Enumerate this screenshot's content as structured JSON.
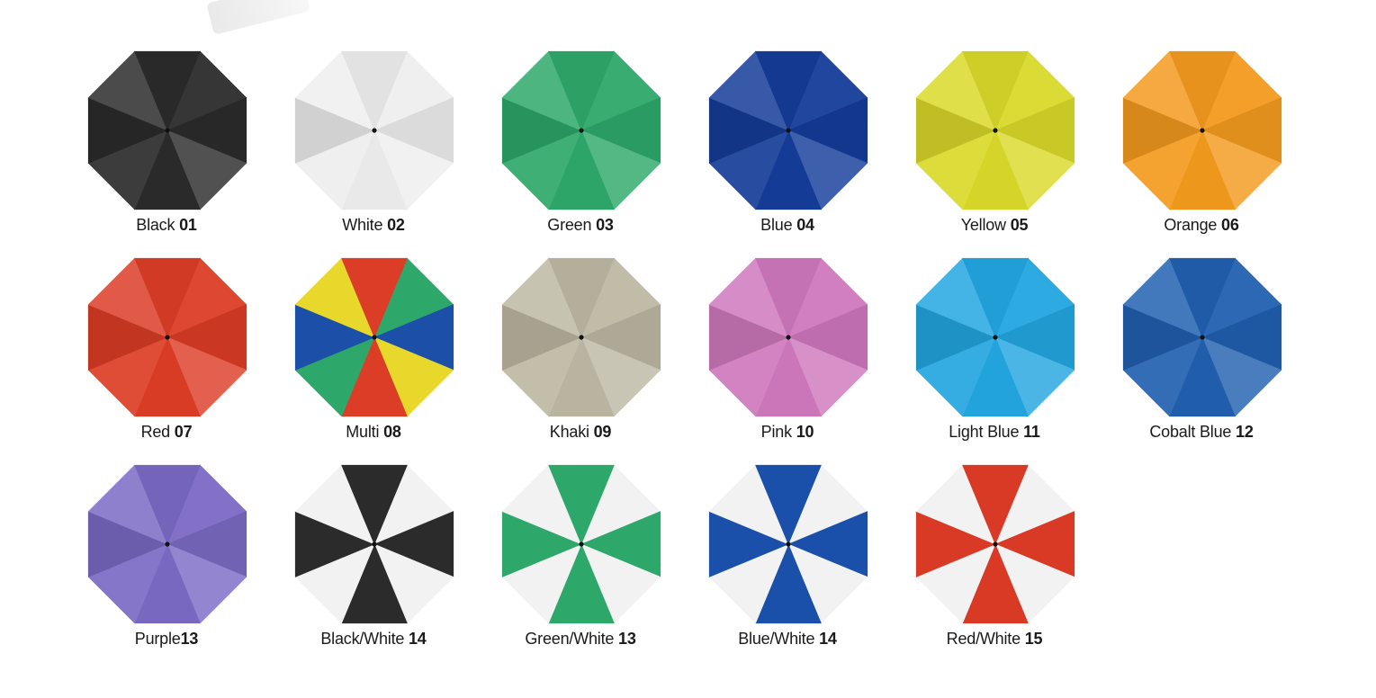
{
  "swatches": [
    {
      "name": "Black",
      "code": "01",
      "colors": [
        "#2b2b2b"
      ]
    },
    {
      "name": "White",
      "code": "02",
      "colors": [
        "#eeeeee"
      ]
    },
    {
      "name": "Green",
      "code": "03",
      "colors": [
        "#2ea86a"
      ]
    },
    {
      "name": "Blue",
      "code": "04",
      "colors": [
        "#143c98"
      ]
    },
    {
      "name": "Yellow",
      "code": "05",
      "colors": [
        "#d9d92a"
      ]
    },
    {
      "name": "Orange",
      "code": "06",
      "colors": [
        "#f39a1e"
      ]
    },
    {
      "name": "Red",
      "code": "07",
      "colors": [
        "#dc3d26"
      ]
    },
    {
      "name": "Multi",
      "code": "08",
      "colors": [
        "#2ea86a",
        "#1c50a8",
        "#e8d82c",
        "#dc3d26",
        "#2ea86a",
        "#1c50a8",
        "#e8d82c",
        "#dc3d26"
      ]
    },
    {
      "name": "Khaki",
      "code": "09",
      "colors": [
        "#bdb8a3"
      ]
    },
    {
      "name": "Pink",
      "code": "10",
      "colors": [
        "#cf78bd"
      ]
    },
    {
      "name": "Light Blue",
      "code": "11",
      "colors": [
        "#23a6e0"
      ]
    },
    {
      "name": "Cobalt Blue",
      "code": "12",
      "colors": [
        "#2160b0"
      ]
    },
    {
      "name": "Purple",
      "code": "13",
      "colors": [
        "#7b6ac4"
      ]
    },
    {
      "name": "Black/White",
      "code": "14",
      "colors": [
        "#f2f2f2",
        "#2b2b2b"
      ]
    },
    {
      "name": "Green/White",
      "code": "13",
      "colors": [
        "#f2f2f2",
        "#2ea86a"
      ]
    },
    {
      "name": "Blue/White",
      "code": "14",
      "colors": [
        "#f2f2f2",
        "#1a4faa"
      ]
    },
    {
      "name": "Red/White",
      "code": "15",
      "colors": [
        "#f2f2f2",
        "#d83a26"
      ]
    }
  ]
}
